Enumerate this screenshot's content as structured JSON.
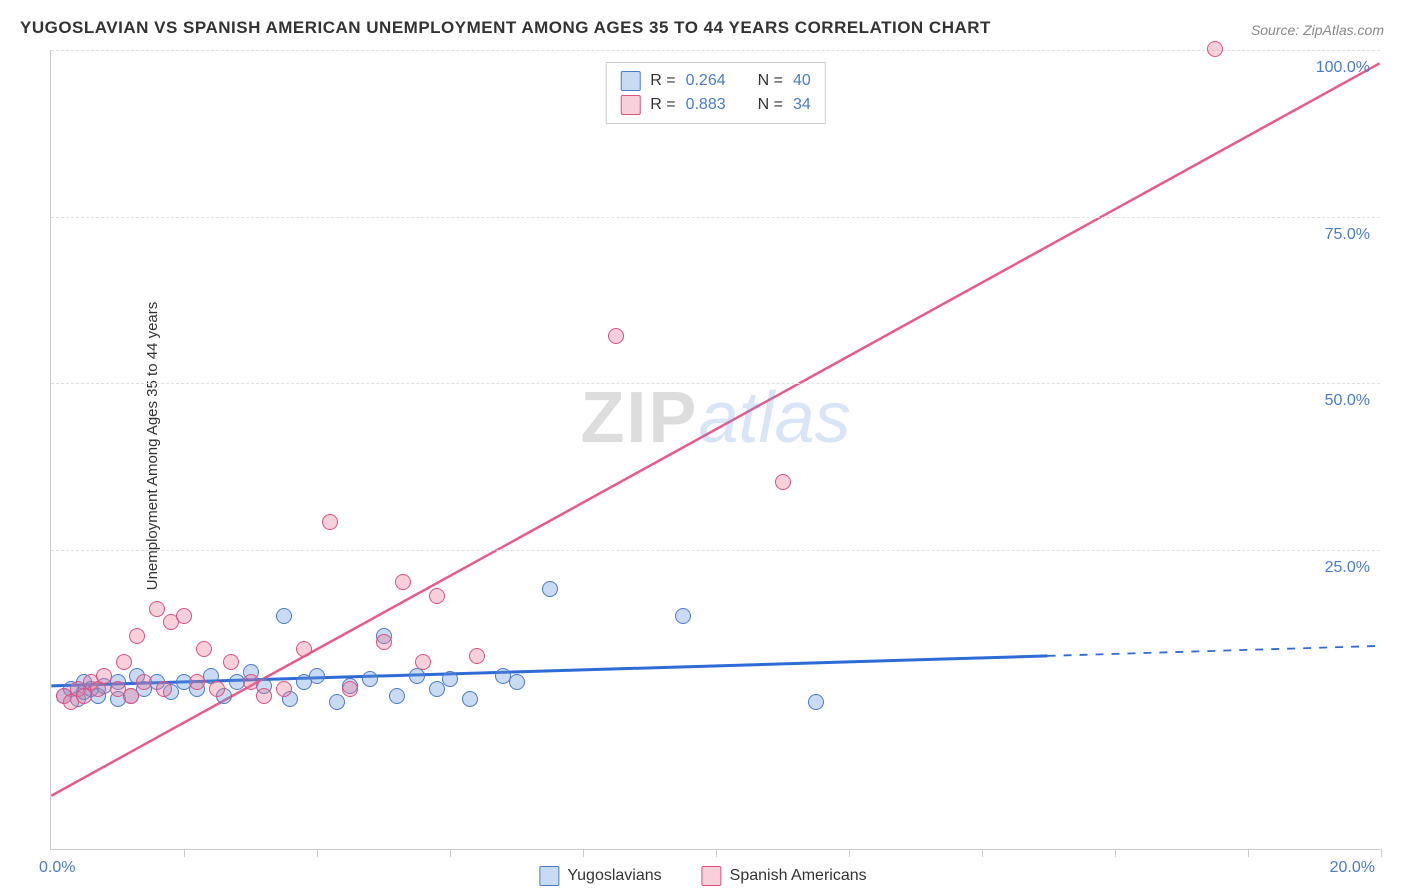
{
  "title": "YUGOSLAVIAN VS SPANISH AMERICAN UNEMPLOYMENT AMONG AGES 35 TO 44 YEARS CORRELATION CHART",
  "source": "Source: ZipAtlas.com",
  "ylabel": "Unemployment Among Ages 35 to 44 years",
  "watermark_zip": "ZIP",
  "watermark_atlas": "atlas",
  "chart": {
    "type": "scatter",
    "xlim": [
      0,
      20
    ],
    "ylim": [
      -20,
      100
    ],
    "yticks": [
      25,
      50,
      75,
      100
    ],
    "ytick_labels": [
      "25.0%",
      "50.0%",
      "75.0%",
      "100.0%"
    ],
    "xtick_positions": [
      0,
      2,
      4,
      6,
      8,
      10,
      12,
      14,
      16,
      18,
      20
    ],
    "xlabel_origin": "0.0%",
    "xlabel_end": "20.0%",
    "background_color": "#ffffff",
    "grid_color": "#e0e0e0",
    "axis_color": "#cccccc",
    "tick_label_color": "#4a7bc8",
    "series": [
      {
        "name": "Yugoslavians",
        "color_fill": "rgba(100,150,220,0.35)",
        "color_stroke": "#4a7bc8",
        "marker_size": 16,
        "R": "0.264",
        "N": "40",
        "trend": {
          "x1": 0,
          "y1": 4.5,
          "x2": 20,
          "y2": 10.5,
          "solid_until_x": 15,
          "color": "#2e6bd6",
          "width": 3
        },
        "points": [
          [
            0.2,
            3
          ],
          [
            0.3,
            4
          ],
          [
            0.4,
            2.5
          ],
          [
            0.5,
            3.5
          ],
          [
            0.5,
            5
          ],
          [
            0.6,
            4
          ],
          [
            0.7,
            3
          ],
          [
            0.8,
            4.5
          ],
          [
            1.0,
            5
          ],
          [
            1.0,
            2.5
          ],
          [
            1.2,
            3
          ],
          [
            1.3,
            6
          ],
          [
            1.4,
            4
          ],
          [
            1.6,
            5
          ],
          [
            1.8,
            3.5
          ],
          [
            2.0,
            5
          ],
          [
            2.2,
            4
          ],
          [
            2.4,
            6
          ],
          [
            2.6,
            3
          ],
          [
            2.8,
            5
          ],
          [
            3.0,
            6.5
          ],
          [
            3.2,
            4.5
          ],
          [
            3.5,
            15
          ],
          [
            3.6,
            2.5
          ],
          [
            3.8,
            5
          ],
          [
            4.0,
            6
          ],
          [
            4.3,
            2
          ],
          [
            4.5,
            4.5
          ],
          [
            4.8,
            5.5
          ],
          [
            5.0,
            12
          ],
          [
            5.2,
            3
          ],
          [
            5.5,
            6
          ],
          [
            5.8,
            4
          ],
          [
            6.0,
            5.5
          ],
          [
            6.3,
            2.5
          ],
          [
            6.8,
            6
          ],
          [
            7.0,
            5
          ],
          [
            7.5,
            19
          ],
          [
            9.5,
            15
          ],
          [
            11.5,
            2
          ]
        ]
      },
      {
        "name": "Spanish Americans",
        "color_fill": "rgba(235,120,150,0.35)",
        "color_stroke": "#e05080",
        "marker_size": 16,
        "R": "0.883",
        "N": "34",
        "trend": {
          "x1": 0,
          "y1": -12,
          "x2": 20,
          "y2": 98,
          "solid_until_x": 20,
          "color": "#e85a8a",
          "width": 2.5
        },
        "points": [
          [
            0.2,
            3
          ],
          [
            0.3,
            2
          ],
          [
            0.4,
            4
          ],
          [
            0.5,
            3
          ],
          [
            0.6,
            5
          ],
          [
            0.7,
            4
          ],
          [
            0.8,
            6
          ],
          [
            1.0,
            4
          ],
          [
            1.1,
            8
          ],
          [
            1.2,
            3
          ],
          [
            1.3,
            12
          ],
          [
            1.4,
            5
          ],
          [
            1.6,
            16
          ],
          [
            1.7,
            4
          ],
          [
            1.8,
            14
          ],
          [
            2.0,
            15
          ],
          [
            2.2,
            5
          ],
          [
            2.3,
            10
          ],
          [
            2.5,
            4
          ],
          [
            2.7,
            8
          ],
          [
            3.0,
            5
          ],
          [
            3.2,
            3
          ],
          [
            3.5,
            4
          ],
          [
            3.8,
            10
          ],
          [
            4.2,
            29
          ],
          [
            4.5,
            4
          ],
          [
            5.0,
            11
          ],
          [
            5.3,
            20
          ],
          [
            5.6,
            8
          ],
          [
            5.8,
            18
          ],
          [
            8.5,
            57
          ],
          [
            11.0,
            35
          ],
          [
            17.5,
            100
          ],
          [
            6.4,
            9
          ]
        ]
      }
    ]
  },
  "stats_box": {
    "rows": [
      {
        "swatch": "blue",
        "r_label": "R =",
        "r_val": "0.264",
        "n_label": "N =",
        "n_val": "40"
      },
      {
        "swatch": "pink",
        "r_label": "R =",
        "r_val": "0.883",
        "n_label": "N =",
        "n_val": "34"
      }
    ]
  },
  "legend": {
    "items": [
      {
        "swatch": "blue",
        "label": "Yugoslavians"
      },
      {
        "swatch": "pink",
        "label": "Spanish Americans"
      }
    ]
  }
}
